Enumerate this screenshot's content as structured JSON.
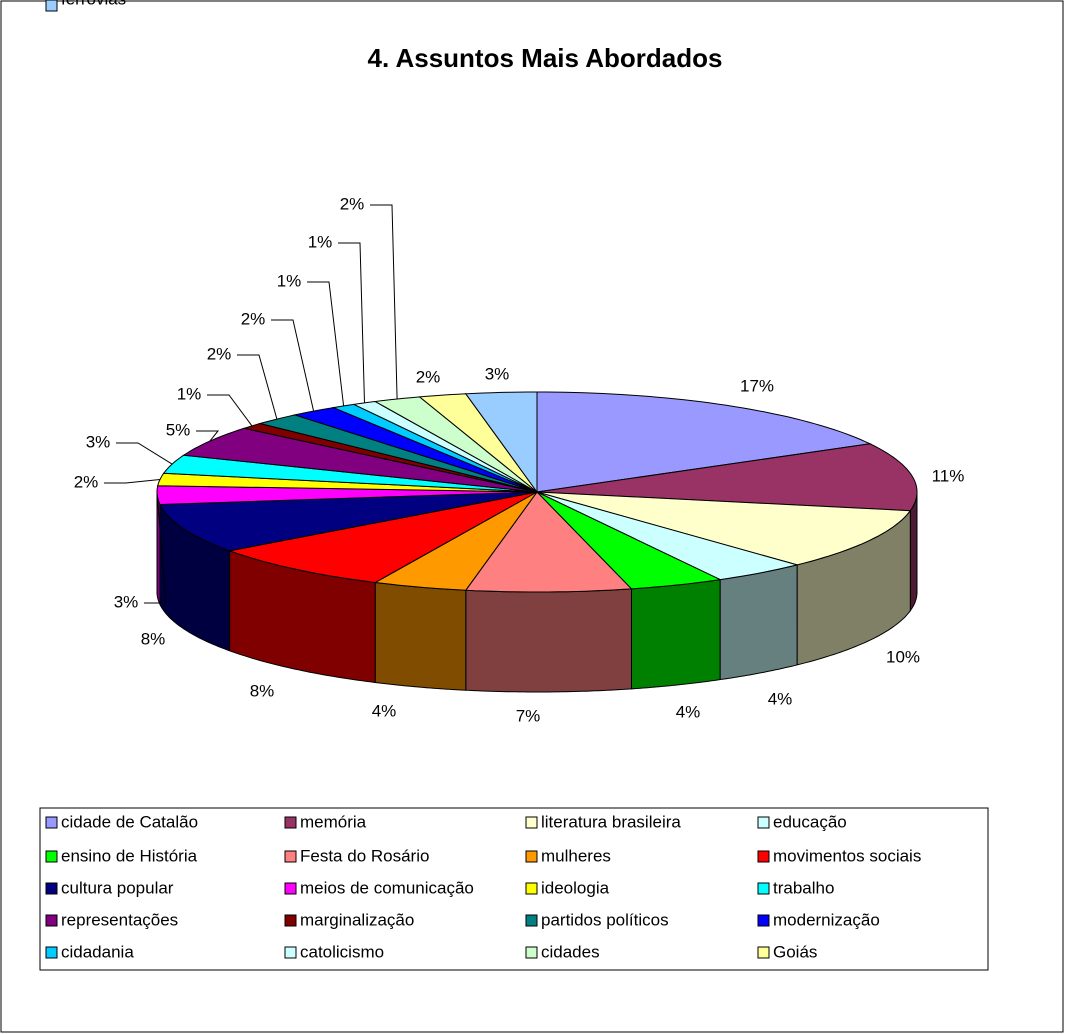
{
  "chart_data": {
    "type": "pie3d",
    "title": "4. Assuntos Mais Abordados",
    "categories": [
      "cidade de Catalão",
      "memória",
      "literatura brasileira",
      "educação",
      "ensino de História",
      "Festa do Rosário",
      "mulheres",
      "movimentos sociais",
      "cultura popular",
      "meios de comunicação",
      "ideologia",
      "trabalho",
      "representações",
      "marginalização",
      "partidos políticos",
      "modernização",
      "cidadania",
      "catolicismo",
      "cidades",
      "Goiás",
      "ferrovias"
    ],
    "values": [
      17,
      11,
      10,
      4,
      4,
      7,
      4,
      8,
      8,
      3,
      2,
      3,
      5,
      1,
      2,
      2,
      1,
      1,
      2,
      2,
      3
    ],
    "value_labels": [
      "17%",
      "11%",
      "10%",
      "4%",
      "4%",
      "7%",
      "4%",
      "8%",
      "8%",
      "3%",
      "2%",
      "3%",
      "5%",
      "1%",
      "2%",
      "2%",
      "1%",
      "1%",
      "2%",
      "2%",
      "3%"
    ],
    "colors": [
      "#9999FF",
      "#993366",
      "#FFFFCC",
      "#CCFFFF",
      "#00FF00",
      "#FF8080",
      "#FF9900",
      "#FF0000",
      "#000080",
      "#FF00FF",
      "#FFFF00",
      "#00FFFF",
      "#800080",
      "#800000",
      "#008080",
      "#0000FF",
      "#00CCFF",
      "#CCFFFF",
      "#CCFFCC",
      "#FFFF99",
      "#99CCFF"
    ],
    "legend": "bottom"
  }
}
